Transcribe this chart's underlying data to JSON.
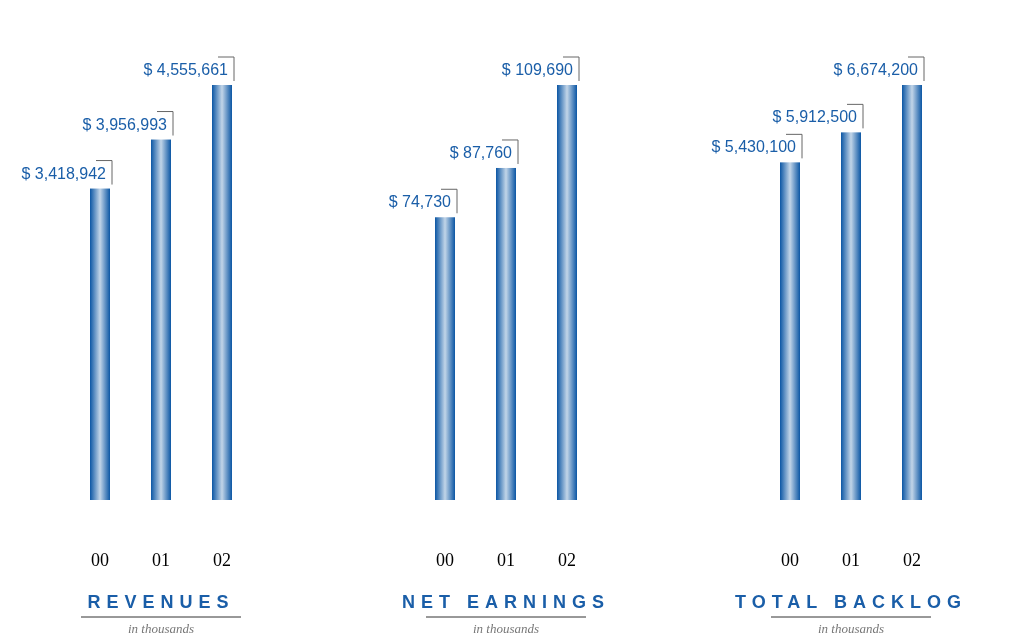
{
  "chart_data": [
    {
      "type": "bar",
      "title": "REVENUES",
      "subtitle": "in thousands",
      "categories": [
        "00",
        "01",
        "02"
      ],
      "series": [
        {
          "color": "#0b56a4",
          "values": [
            3418942,
            3956993,
            4555661
          ],
          "value_labels": [
            "$ 3,418,942",
            "$ 3,956,993",
            "$ 4,555,661"
          ]
        }
      ]
    },
    {
      "type": "bar",
      "title": "NET EARNINGS",
      "subtitle": "in thousands",
      "categories": [
        "00",
        "01",
        "02"
      ],
      "series": [
        {
          "color": "#0b56a4",
          "values": [
            74730,
            87760,
            109690
          ],
          "value_labels": [
            "$ 74,730",
            "$ 87,760",
            "$ 109,690"
          ]
        }
      ]
    },
    {
      "type": "bar",
      "title": "TOTAL BACKLOG",
      "subtitle": "in thousands",
      "categories": [
        "00",
        "01",
        "02"
      ],
      "series": [
        {
          "color": "#0b56a4",
          "values": [
            5430100,
            5912500,
            6674200
          ],
          "value_labels": [
            "$ 5,430,100",
            "$ 5,912,500",
            "$ 6,674,200"
          ]
        }
      ]
    }
  ]
}
